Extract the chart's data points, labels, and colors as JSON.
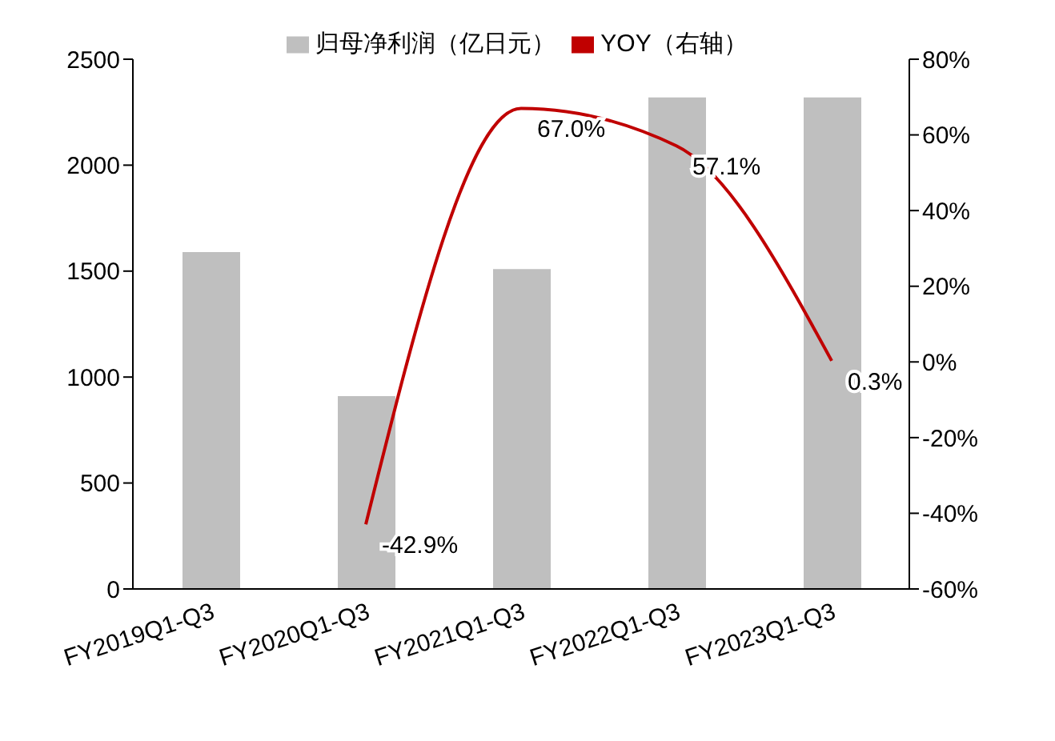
{
  "chart_data": {
    "type": "bar",
    "categories": [
      "FY2019Q1-Q3",
      "FY2020Q1-Q3",
      "FY2021Q1-Q3",
      "FY2022Q1-Q3",
      "FY2023Q1-Q3"
    ],
    "series": [
      {
        "name": "归母净利润（亿日元）",
        "color": "#bfbfbf",
        "values": [
          1590,
          910,
          1510,
          2320,
          2320
        ]
      },
      {
        "name": "YOY（右轴）",
        "type": "line",
        "axis": "y2",
        "color": "#c00000",
        "values": [
          null,
          -42.9,
          67.0,
          57.1,
          0.3
        ],
        "value_labels": [
          null,
          "-42.9%",
          "67.0%",
          "57.1%",
          "0.3%"
        ]
      }
    ],
    "ylim": [
      0,
      2500
    ],
    "yticks": [
      0,
      500,
      1000,
      1500,
      2000,
      2500
    ],
    "y2lim": [
      -60,
      80
    ],
    "y2ticks": [
      {
        "value": -60,
        "label": "-60%"
      },
      {
        "value": -40,
        "label": "-40%"
      },
      {
        "value": -20,
        "label": "-20%"
      },
      {
        "value": 0,
        "label": "0%"
      },
      {
        "value": 20,
        "label": "20%"
      },
      {
        "value": 40,
        "label": "40%"
      },
      {
        "value": 60,
        "label": "60%"
      },
      {
        "value": 80,
        "label": "80%"
      }
    ],
    "grid": false,
    "legend": "top",
    "marker": "none",
    "line_style": "solid"
  }
}
